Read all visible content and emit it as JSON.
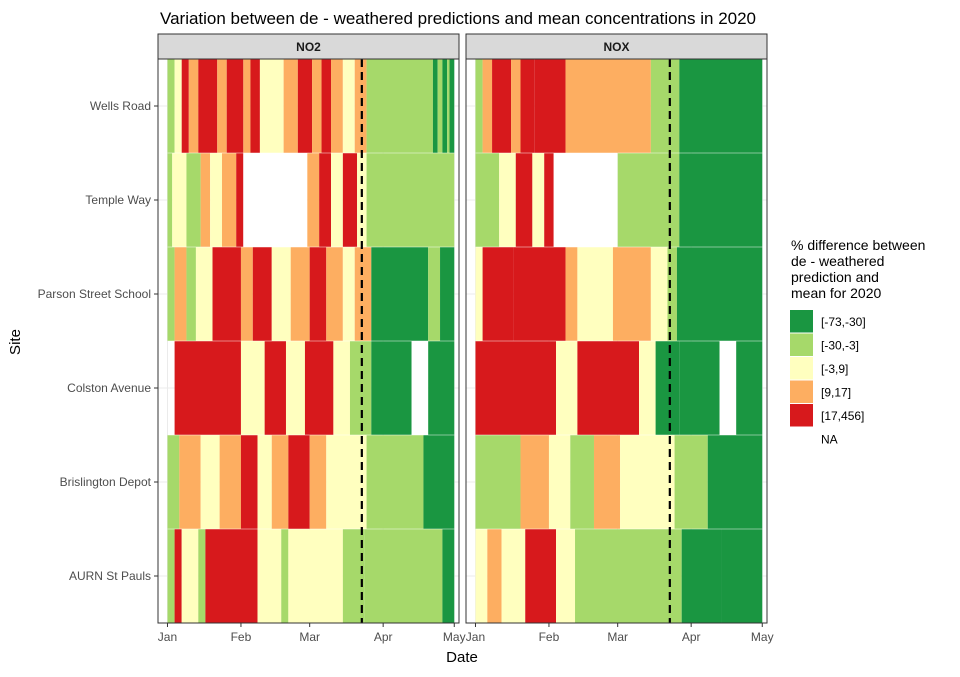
{
  "chart_data": {
    "type": "heatmap",
    "title": "Variation between de - weathered predictions and mean concentrations in 2020",
    "xlabel": "Date",
    "ylabel": "Site",
    "x_ticks": [
      "Jan",
      "Feb",
      "Mar",
      "Apr",
      "May"
    ],
    "x_tick_dates": [
      "2020-01-01",
      "2020-02-01",
      "2020-03-01",
      "2020-04-01",
      "2020-05-01"
    ],
    "xlim": [
      "2019-12-28",
      "2020-05-03"
    ],
    "sites": [
      "Wells Road",
      "Temple Way",
      "Parson Street School",
      "Colston Avenue",
      "Brislington Depot",
      "AURN St Pauls"
    ],
    "reference_line_date": "2020-03-23",
    "legend": {
      "title": "% difference between\n de - weathered\n prediction and\n mean for 2020",
      "position": "right",
      "items": [
        {
          "label": "[-73,-30]",
          "color": "#1a9641"
        },
        {
          "label": "[-30,-3]",
          "color": "#a6d96a"
        },
        {
          "label": "[-3,9]",
          "color": "#ffffbf"
        },
        {
          "label": "[9,17]",
          "color": "#fdae61"
        },
        {
          "label": "[17,456]",
          "color": "#d7191c"
        },
        {
          "label": "NA",
          "color": "#ffffff"
        }
      ]
    },
    "panels": [
      {
        "name": "NO2",
        "rows": [
          {
            "site": "Wells Road",
            "segments": [
              [
                "2020-01-01",
                "2020-01-04",
                "[-30,-3]"
              ],
              [
                "2020-01-04",
                "2020-01-07",
                "[-3,9]"
              ],
              [
                "2020-01-07",
                "2020-01-10",
                "[17,456]"
              ],
              [
                "2020-01-10",
                "2020-01-14",
                "[9,17]"
              ],
              [
                "2020-01-14",
                "2020-01-22",
                "[17,456]"
              ],
              [
                "2020-01-22",
                "2020-01-26",
                "[9,17]"
              ],
              [
                "2020-01-26",
                "2020-02-02",
                "[17,456]"
              ],
              [
                "2020-02-02",
                "2020-02-05",
                "[9,17]"
              ],
              [
                "2020-02-05",
                "2020-02-09",
                "[17,456]"
              ],
              [
                "2020-02-09",
                "2020-02-19",
                "[-3,9]"
              ],
              [
                "2020-02-19",
                "2020-02-25",
                "[9,17]"
              ],
              [
                "2020-02-25",
                "2020-03-02",
                "[17,456]"
              ],
              [
                "2020-03-02",
                "2020-03-06",
                "[9,17]"
              ],
              [
                "2020-03-06",
                "2020-03-10",
                "[17,456]"
              ],
              [
                "2020-03-10",
                "2020-03-15",
                "[9,17]"
              ],
              [
                "2020-03-15",
                "2020-03-20",
                "[-3,9]"
              ],
              [
                "2020-03-20",
                "2020-03-25",
                "[9,17]"
              ],
              [
                "2020-03-25",
                "2020-04-22",
                "[-30,-3]"
              ],
              [
                "2020-04-22",
                "2020-04-24",
                "[-73,-30]"
              ],
              [
                "2020-04-24",
                "2020-04-26",
                "[-30,-3]"
              ],
              [
                "2020-04-26",
                "2020-04-28",
                "[-73,-30]"
              ],
              [
                "2020-04-28",
                "2020-04-29",
                "[-30,-3]"
              ],
              [
                "2020-04-29",
                "2020-05-01",
                "[-73,-30]"
              ]
            ]
          },
          {
            "site": "Temple Way",
            "segments": [
              [
                "2020-01-01",
                "2020-01-03",
                "[-30,-3]"
              ],
              [
                "2020-01-03",
                "2020-01-09",
                "[-3,9]"
              ],
              [
                "2020-01-09",
                "2020-01-15",
                "[-30,-3]"
              ],
              [
                "2020-01-15",
                "2020-01-19",
                "[9,17]"
              ],
              [
                "2020-01-19",
                "2020-01-24",
                "[-3,9]"
              ],
              [
                "2020-01-24",
                "2020-01-30",
                "[9,17]"
              ],
              [
                "2020-01-30",
                "2020-02-02",
                "[17,456]"
              ],
              [
                "2020-02-02",
                "2020-02-29",
                "NA"
              ],
              [
                "2020-02-29",
                "2020-03-05",
                "[9,17]"
              ],
              [
                "2020-03-05",
                "2020-03-10",
                "[17,456]"
              ],
              [
                "2020-03-10",
                "2020-03-15",
                "[-3,9]"
              ],
              [
                "2020-03-15",
                "2020-03-21",
                "[17,456]"
              ],
              [
                "2020-03-21",
                "2020-03-25",
                "[-3,9]"
              ],
              [
                "2020-03-25",
                "2020-05-01",
                "[-30,-3]"
              ]
            ]
          },
          {
            "site": "Parson Street School",
            "segments": [
              [
                "2020-01-01",
                "2020-01-04",
                "[-30,-3]"
              ],
              [
                "2020-01-04",
                "2020-01-09",
                "[9,17]"
              ],
              [
                "2020-01-09",
                "2020-01-13",
                "[-30,-3]"
              ],
              [
                "2020-01-13",
                "2020-01-20",
                "[-3,9]"
              ],
              [
                "2020-01-20",
                "2020-02-01",
                "[17,456]"
              ],
              [
                "2020-02-01",
                "2020-02-06",
                "[9,17]"
              ],
              [
                "2020-02-06",
                "2020-02-14",
                "[17,456]"
              ],
              [
                "2020-02-14",
                "2020-02-22",
                "[-3,9]"
              ],
              [
                "2020-02-22",
                "2020-03-01",
                "[9,17]"
              ],
              [
                "2020-03-01",
                "2020-03-08",
                "[17,456]"
              ],
              [
                "2020-03-08",
                "2020-03-15",
                "[9,17]"
              ],
              [
                "2020-03-15",
                "2020-03-20",
                "[-3,9]"
              ],
              [
                "2020-03-20",
                "2020-03-27",
                "[9,17]"
              ],
              [
                "2020-03-27",
                "2020-04-20",
                "[-73,-30]"
              ],
              [
                "2020-04-20",
                "2020-04-25",
                "[-30,-3]"
              ],
              [
                "2020-04-25",
                "2020-05-01",
                "[-73,-30]"
              ]
            ]
          },
          {
            "site": "Colston Avenue",
            "segments": [
              [
                "2020-01-04",
                "2020-02-01",
                "[17,456]"
              ],
              [
                "2020-02-01",
                "2020-02-11",
                "[-3,9]"
              ],
              [
                "2020-02-11",
                "2020-02-20",
                "[17,456]"
              ],
              [
                "2020-02-20",
                "2020-02-28",
                "[-3,9]"
              ],
              [
                "2020-02-28",
                "2020-03-11",
                "[17,456]"
              ],
              [
                "2020-03-11",
                "2020-03-18",
                "[-3,9]"
              ],
              [
                "2020-03-18",
                "2020-03-27",
                "[-30,-3]"
              ],
              [
                "2020-03-27",
                "2020-04-13",
                "[-73,-30]"
              ],
              [
                "2020-04-13",
                "2020-04-20",
                "NA"
              ],
              [
                "2020-04-20",
                "2020-05-01",
                "[-73,-30]"
              ]
            ]
          },
          {
            "site": "Brislington Depot",
            "segments": [
              [
                "2020-01-01",
                "2020-01-06",
                "[-30,-3]"
              ],
              [
                "2020-01-06",
                "2020-01-15",
                "[9,17]"
              ],
              [
                "2020-01-15",
                "2020-01-23",
                "[-3,9]"
              ],
              [
                "2020-01-23",
                "2020-02-01",
                "[9,17]"
              ],
              [
                "2020-02-01",
                "2020-02-08",
                "[17,456]"
              ],
              [
                "2020-02-08",
                "2020-02-14",
                "[-3,9]"
              ],
              [
                "2020-02-14",
                "2020-02-21",
                "[9,17]"
              ],
              [
                "2020-02-21",
                "2020-03-01",
                "[17,456]"
              ],
              [
                "2020-03-01",
                "2020-03-08",
                "[9,17]"
              ],
              [
                "2020-03-08",
                "2020-03-25",
                "[-3,9]"
              ],
              [
                "2020-03-25",
                "2020-04-18",
                "[-30,-3]"
              ],
              [
                "2020-04-18",
                "2020-05-01",
                "[-73,-30]"
              ]
            ]
          },
          {
            "site": "AURN St Pauls",
            "segments": [
              [
                "2020-01-01",
                "2020-01-04",
                "[-30,-3]"
              ],
              [
                "2020-01-04",
                "2020-01-07",
                "[17,456]"
              ],
              [
                "2020-01-07",
                "2020-01-14",
                "[-3,9]"
              ],
              [
                "2020-01-14",
                "2020-01-17",
                "[-30,-3]"
              ],
              [
                "2020-01-17",
                "2020-02-08",
                "[17,456]"
              ],
              [
                "2020-02-08",
                "2020-02-18",
                "[-3,9]"
              ],
              [
                "2020-02-18",
                "2020-02-21",
                "[-30,-3]"
              ],
              [
                "2020-02-21",
                "2020-03-15",
                "[-3,9]"
              ],
              [
                "2020-03-15",
                "2020-03-24",
                "[-30,-3]"
              ],
              [
                "2020-03-24",
                "2020-04-26",
                "[-30,-3]"
              ],
              [
                "2020-04-26",
                "2020-05-01",
                "[-73,-30]"
              ]
            ]
          }
        ]
      },
      {
        "name": "NOX",
        "rows": [
          {
            "site": "Wells Road",
            "segments": [
              [
                "2020-01-01",
                "2020-01-04",
                "[-30,-3]"
              ],
              [
                "2020-01-04",
                "2020-01-08",
                "[9,17]"
              ],
              [
                "2020-01-08",
                "2020-01-16",
                "[17,456]"
              ],
              [
                "2020-01-16",
                "2020-01-20",
                "[9,17]"
              ],
              [
                "2020-01-20",
                "2020-01-26",
                "[17,456]"
              ],
              [
                "2020-01-26",
                "2020-02-08",
                "[17,456]"
              ],
              [
                "2020-02-08",
                "2020-03-15",
                "[9,17]"
              ],
              [
                "2020-03-15",
                "2020-03-27",
                "[-30,-3]"
              ],
              [
                "2020-03-27",
                "2020-05-01",
                "[-73,-30]"
              ]
            ]
          },
          {
            "site": "Temple Way",
            "segments": [
              [
                "2020-01-01",
                "2020-01-11",
                "[-30,-3]"
              ],
              [
                "2020-01-11",
                "2020-01-18",
                "[-3,9]"
              ],
              [
                "2020-01-18",
                "2020-01-25",
                "[17,456]"
              ],
              [
                "2020-01-25",
                "2020-01-30",
                "[-3,9]"
              ],
              [
                "2020-01-30",
                "2020-02-03",
                "[17,456]"
              ],
              [
                "2020-02-03",
                "2020-03-01",
                "NA"
              ],
              [
                "2020-03-01",
                "2020-03-27",
                "[-30,-3]"
              ],
              [
                "2020-03-27",
                "2020-05-01",
                "[-73,-30]"
              ]
            ]
          },
          {
            "site": "Parson Street School",
            "segments": [
              [
                "2020-01-01",
                "2020-01-04",
                "[-3,9]"
              ],
              [
                "2020-01-04",
                "2020-01-17",
                "[17,456]"
              ],
              [
                "2020-01-17",
                "2020-02-08",
                "[17,456]"
              ],
              [
                "2020-02-08",
                "2020-02-13",
                "[9,17]"
              ],
              [
                "2020-02-13",
                "2020-02-28",
                "[-3,9]"
              ],
              [
                "2020-02-28",
                "2020-03-15",
                "[9,17]"
              ],
              [
                "2020-03-15",
                "2020-03-22",
                "[-3,9]"
              ],
              [
                "2020-03-22",
                "2020-03-26",
                "[-30,-3]"
              ],
              [
                "2020-03-26",
                "2020-05-01",
                "[-73,-30]"
              ]
            ]
          },
          {
            "site": "Colston Avenue",
            "segments": [
              [
                "2020-01-01",
                "2020-02-04",
                "[17,456]"
              ],
              [
                "2020-02-04",
                "2020-02-13",
                "[-3,9]"
              ],
              [
                "2020-02-13",
                "2020-03-10",
                "[17,456]"
              ],
              [
                "2020-03-10",
                "2020-03-17",
                "[-3,9]"
              ],
              [
                "2020-03-17",
                "2020-03-27",
                "[-73,-30]"
              ],
              [
                "2020-03-27",
                "2020-04-13",
                "[-73,-30]"
              ],
              [
                "2020-04-13",
                "2020-04-20",
                "NA"
              ],
              [
                "2020-04-20",
                "2020-05-01",
                "[-73,-30]"
              ]
            ]
          },
          {
            "site": "Brislington Depot",
            "segments": [
              [
                "2020-01-01",
                "2020-01-20",
                "[-30,-3]"
              ],
              [
                "2020-01-20",
                "2020-02-01",
                "[9,17]"
              ],
              [
                "2020-02-01",
                "2020-02-10",
                "[-3,9]"
              ],
              [
                "2020-02-10",
                "2020-02-20",
                "[-30,-3]"
              ],
              [
                "2020-02-20",
                "2020-03-02",
                "[9,17]"
              ],
              [
                "2020-03-02",
                "2020-03-25",
                "[-3,9]"
              ],
              [
                "2020-03-25",
                "2020-04-08",
                "[-30,-3]"
              ],
              [
                "2020-04-08",
                "2020-05-01",
                "[-73,-30]"
              ]
            ]
          },
          {
            "site": "AURN St Pauls",
            "segments": [
              [
                "2020-01-01",
                "2020-01-06",
                "[-3,9]"
              ],
              [
                "2020-01-06",
                "2020-01-12",
                "[9,17]"
              ],
              [
                "2020-01-12",
                "2020-01-22",
                "[-3,9]"
              ],
              [
                "2020-01-22",
                "2020-02-04",
                "[17,456]"
              ],
              [
                "2020-02-04",
                "2020-02-12",
                "[-3,9]"
              ],
              [
                "2020-02-12",
                "2020-03-28",
                "[-30,-3]"
              ],
              [
                "2020-03-28",
                "2020-04-14",
                "[-73,-30]"
              ],
              [
                "2020-04-14",
                "2020-05-01",
                "[-73,-30]"
              ]
            ]
          }
        ]
      }
    ]
  }
}
